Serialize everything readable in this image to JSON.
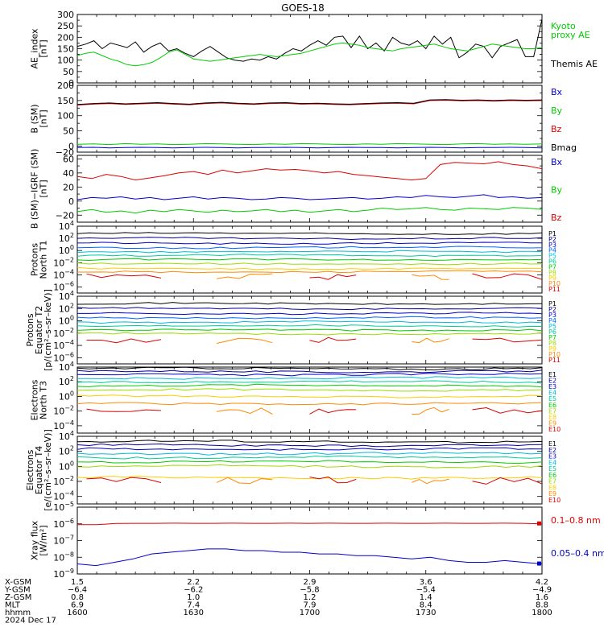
{
  "title": "GOES-18",
  "colors": {
    "black": "#000000",
    "blue": "#0000cc",
    "green": "#00cc00",
    "red": "#dd0000",
    "navy": "#000099"
  },
  "chart_data": [
    {
      "id": "ae",
      "type": "line",
      "ylabel": "AE_index\n[nT]",
      "ylim": [
        0,
        300
      ],
      "yticks": [
        0,
        50,
        100,
        150,
        200,
        250,
        300
      ],
      "legend": [
        {
          "text": "Kyoto",
          "color": "#00cc00"
        },
        {
          "text": "proxy AE",
          "color": "#00cc00"
        },
        {
          "text": "",
          "color": "#000000"
        },
        {
          "text": "Themis AE",
          "color": "#000000"
        }
      ],
      "series": [
        {
          "color": "#000000",
          "values": [
            160,
            170,
            185,
            150,
            175,
            165,
            155,
            180,
            135,
            160,
            175,
            140,
            150,
            130,
            115,
            140,
            160,
            135,
            110,
            100,
            95,
            105,
            100,
            115,
            105,
            130,
            150,
            140,
            165,
            185,
            165,
            200,
            205,
            155,
            205,
            150,
            175,
            140,
            200,
            175,
            165,
            185,
            150,
            205,
            170,
            200,
            110,
            135,
            170,
            160,
            110,
            160,
            175,
            190,
            115,
            115,
            280
          ]
        },
        {
          "color": "#00cc00",
          "values": [
            120,
            130,
            135,
            120,
            105,
            95,
            80,
            75,
            80,
            90,
            110,
            135,
            145,
            125,
            105,
            100,
            95,
            100,
            105,
            110,
            115,
            120,
            125,
            120,
            115,
            120,
            125,
            130,
            140,
            150,
            160,
            170,
            175,
            170,
            165,
            155,
            150,
            145,
            140,
            150,
            155,
            160,
            165,
            170,
            160,
            150,
            145,
            140,
            150,
            160,
            170,
            165,
            160,
            155,
            150,
            150,
            155
          ]
        }
      ]
    },
    {
      "id": "bsm",
      "type": "line",
      "ylabel": "B (SM)\n[nT]",
      "ylim": [
        -20,
        200
      ],
      "yticks": [
        0,
        50,
        100,
        150,
        200
      ],
      "ytick_labels": [
        "0",
        "50",
        "100",
        "150",
        "200"
      ],
      "extra_ticks": [
        {
          "value": -20,
          "label": "−20"
        }
      ],
      "legend": [
        {
          "text": "Bx",
          "color": "#0000cc"
        },
        {
          "text": "By",
          "color": "#00cc00"
        },
        {
          "text": "Bz",
          "color": "#dd0000"
        },
        {
          "text": "Bmag",
          "color": "#000000"
        }
      ],
      "series": [
        {
          "color": "#0000cc",
          "values": [
            -5,
            -4,
            -6,
            -5,
            -4,
            -5,
            -6,
            -5,
            -4,
            -5,
            -6,
            -5,
            -5,
            -4,
            -5,
            -6,
            -5,
            -4,
            -5,
            -5,
            -6,
            -5,
            -4,
            -5,
            -6,
            -5,
            -5,
            -4,
            -5,
            -6
          ]
        },
        {
          "color": "#00cc00",
          "values": [
            6,
            7,
            5,
            8,
            6,
            7,
            5,
            6,
            8,
            7,
            6,
            5,
            7,
            6,
            8,
            7,
            6,
            5,
            7,
            6,
            8,
            7,
            6,
            5,
            7,
            8,
            6,
            7,
            6,
            7
          ]
        },
        {
          "color": "#dd0000",
          "values": [
            135,
            138,
            140,
            137,
            139,
            141,
            138,
            136,
            140,
            142,
            139,
            137,
            140,
            141,
            138,
            139,
            137,
            136,
            138,
            140,
            141,
            139,
            150,
            151,
            149,
            150,
            148,
            150,
            149,
            150
          ]
        },
        {
          "color": "#000000",
          "values": [
            137,
            140,
            142,
            139,
            141,
            143,
            140,
            138,
            142,
            144,
            141,
            139,
            142,
            143,
            140,
            141,
            139,
            138,
            140,
            142,
            143,
            141,
            152,
            153,
            151,
            152,
            150,
            152,
            151,
            152
          ]
        }
      ]
    },
    {
      "id": "bigrf",
      "type": "line",
      "ylabel": "B (SM)−IGRF (SM)\n[nT]",
      "ylim": [
        -30,
        65
      ],
      "yticks": [
        -20,
        0,
        20,
        40,
        60
      ],
      "ytick_labels": [
        "−20",
        "0",
        "20",
        "40",
        "60"
      ],
      "legend": [
        {
          "text": "Bx",
          "color": "#0000cc"
        },
        {
          "text": "By",
          "color": "#00cc00"
        },
        {
          "text": "Bz",
          "color": "#dd0000"
        }
      ],
      "series": [
        {
          "color": "#0000cc",
          "values": [
            2,
            5,
            4,
            6,
            3,
            5,
            2,
            4,
            6,
            3,
            5,
            4,
            2,
            3,
            5,
            4,
            2,
            3,
            4,
            5,
            3,
            4,
            6,
            5,
            8,
            6,
            5,
            7,
            9,
            5,
            6,
            4,
            5
          ]
        },
        {
          "color": "#00cc00",
          "values": [
            -15,
            -12,
            -16,
            -14,
            -17,
            -13,
            -15,
            -12,
            -14,
            -16,
            -13,
            -15,
            -14,
            -12,
            -15,
            -13,
            -16,
            -14,
            -12,
            -15,
            -13,
            -10,
            -12,
            -11,
            -9,
            -12,
            -13,
            -10,
            -11,
            -12,
            -9,
            -10,
            -12
          ]
        },
        {
          "color": "#dd0000",
          "values": [
            35,
            32,
            38,
            35,
            30,
            33,
            36,
            40,
            42,
            38,
            44,
            40,
            43,
            46,
            44,
            45,
            43,
            40,
            42,
            38,
            36,
            34,
            32,
            30,
            32,
            52,
            55,
            54,
            53,
            56,
            52,
            50,
            46
          ]
        }
      ]
    },
    {
      "id": "pt1",
      "type": "line",
      "log": true,
      "ylabel": "Protons\nNorth T1",
      "ylim": [
        -7,
        4
      ],
      "yticks": [
        4,
        2,
        0,
        -2,
        -4,
        -6
      ],
      "legend": [
        {
          "text": "P1",
          "color": "#000000"
        },
        {
          "text": "P2",
          "color": "#000099"
        },
        {
          "text": "P3",
          "color": "#0000cc"
        },
        {
          "text": "P4",
          "color": "#0066ff"
        },
        {
          "text": "P5",
          "color": "#00bbdd"
        },
        {
          "text": "P6",
          "color": "#00cc99"
        },
        {
          "text": "P7",
          "color": "#00cc00"
        },
        {
          "text": "P8",
          "color": "#99dd00"
        },
        {
          "text": "P9",
          "color": "#ffcc00"
        },
        {
          "text": "P10",
          "color": "#ff8800"
        },
        {
          "text": "P11",
          "color": "#dd0000"
        }
      ],
      "levels": [
        2.8,
        2.0,
        1.2,
        0.5,
        -0.2,
        -0.8,
        -1.5,
        -2.2,
        -3.0,
        -3.5
      ],
      "sparse_level": -4.3
    },
    {
      "id": "pt2",
      "type": "line",
      "log": true,
      "ylabel": "Protons\nEquator T2\n[p/(cm²–s–sr–keV)]",
      "ylim": [
        -7,
        4
      ],
      "yticks": [
        4,
        2,
        0,
        -2,
        -4,
        -6
      ],
      "legend": [
        {
          "text": "P1",
          "color": "#000000"
        },
        {
          "text": "P2",
          "color": "#000099"
        },
        {
          "text": "P3",
          "color": "#0000cc"
        },
        {
          "text": "P4",
          "color": "#0066ff"
        },
        {
          "text": "P5",
          "color": "#00bbdd"
        },
        {
          "text": "P6",
          "color": "#00cc99"
        },
        {
          "text": "P7",
          "color": "#00cc00"
        },
        {
          "text": "P8",
          "color": "#99dd00"
        },
        {
          "text": "P9",
          "color": "#ffcc00"
        },
        {
          "text": "P10",
          "color": "#ff8800"
        },
        {
          "text": "P11",
          "color": "#dd0000"
        }
      ],
      "levels": [
        2.8,
        2.0,
        1.2,
        0.5,
        -0.2,
        -0.8,
        -1.5,
        -2.1
      ],
      "sparse_level": -3.2
    },
    {
      "id": "et3",
      "type": "line",
      "log": true,
      "ylabel": "Electrons\nNorth T3",
      "ylim": [
        -5,
        4
      ],
      "yticks": [
        4,
        2,
        0,
        -2,
        -4
      ],
      "legend": [
        {
          "text": "E1",
          "color": "#000000"
        },
        {
          "text": "E2",
          "color": "#000099"
        },
        {
          "text": "E3",
          "color": "#0000cc"
        },
        {
          "text": "E4",
          "color": "#00bbdd"
        },
        {
          "text": "E5",
          "color": "#00cc99"
        },
        {
          "text": "E6",
          "color": "#00cc00"
        },
        {
          "text": "E7",
          "color": "#99dd00"
        },
        {
          "text": "E8",
          "color": "#ffcc00"
        },
        {
          "text": "E9",
          "color": "#ff8800"
        },
        {
          "text": "E10",
          "color": "#dd0000"
        }
      ],
      "levels": [
        3.8,
        3.4,
        3.0,
        2.5,
        2.0,
        1.5,
        0.9,
        0.0,
        -1.0
      ],
      "sparse_level": -2.0
    },
    {
      "id": "et4",
      "type": "line",
      "log": true,
      "ylabel": "Electrons\nEquator T4\n[e/(cm²–s–sr–keV)]",
      "ylim": [
        -5,
        4
      ],
      "yticks": [
        4,
        2,
        0,
        -2,
        -4
      ],
      "legend": [
        {
          "text": "E1",
          "color": "#000000"
        },
        {
          "text": "E2",
          "color": "#000099"
        },
        {
          "text": "E3",
          "color": "#0000cc"
        },
        {
          "text": "E4",
          "color": "#00bbdd"
        },
        {
          "text": "E5",
          "color": "#00cc99"
        },
        {
          "text": "E6",
          "color": "#00cc00"
        },
        {
          "text": "E7",
          "color": "#99dd00"
        },
        {
          "text": "E8",
          "color": "#ffcc00"
        },
        {
          "text": "E9",
          "color": "#ff8800"
        },
        {
          "text": "E10",
          "color": "#dd0000"
        }
      ],
      "levels": [
        3.3,
        2.8,
        2.3,
        1.7,
        1.2,
        0.6,
        0.0,
        -1.5
      ],
      "sparse_level": -1.9
    },
    {
      "id": "xray",
      "type": "line",
      "log": true,
      "ylabel": "Xray flux\n[W/m²]",
      "ylim": [
        -9,
        -5
      ],
      "yticks": [
        -5,
        -6,
        -7,
        -8,
        -9
      ],
      "legend": [
        {
          "text": "0.1–0.8 nm",
          "color": "#dd0000"
        },
        {
          "text": "0.05–0.4 nm",
          "color": "#0000cc"
        }
      ],
      "series": [
        {
          "color": "#dd0000",
          "values": [
            -6.05,
            -6.05,
            -5.98,
            -5.97,
            -5.97,
            -5.96,
            -5.97,
            -5.97,
            -5.96,
            -5.97,
            -5.97,
            -5.96,
            -5.97,
            -5.96,
            -5.97,
            -5.97,
            -5.96,
            -5.97,
            -5.97,
            -5.96,
            -5.97,
            -5.97,
            -5.96,
            -5.97,
            -6.0
          ]
        },
        {
          "color": "#0000cc",
          "values": [
            -8.4,
            -8.5,
            -8.3,
            -8.1,
            -7.8,
            -7.7,
            -7.6,
            -7.5,
            -7.5,
            -7.6,
            -7.6,
            -7.7,
            -7.7,
            -7.8,
            -7.8,
            -7.9,
            -7.9,
            -8.0,
            -8.1,
            -8.0,
            -8.2,
            -8.3,
            -8.3,
            -8.2,
            -8.3,
            -8.4
          ]
        }
      ]
    }
  ],
  "x_axis": {
    "tick_values": [
      1600,
      1630,
      1700,
      1730,
      1800
    ],
    "rows": [
      {
        "label": "X-GSM",
        "values": [
          "1.5",
          "2.2",
          "2.9",
          "3.6",
          "4.2"
        ]
      },
      {
        "label": "Y-GSM",
        "values": [
          "−6.4",
          "−6.2",
          "−5.8",
          "−5.4",
          "−4.9"
        ]
      },
      {
        "label": "Z-GSM",
        "values": [
          "0.8",
          "1.0",
          "1.2",
          "1.4",
          "1.6"
        ]
      },
      {
        "label": "MLT",
        "values": [
          "6.9",
          "7.4",
          "7.9",
          "8.4",
          "8.8"
        ]
      },
      {
        "label": "hhmm",
        "values": [
          "1600",
          "1630",
          "1700",
          "1730",
          "1800"
        ]
      }
    ],
    "date": "2024 Dec 17"
  }
}
